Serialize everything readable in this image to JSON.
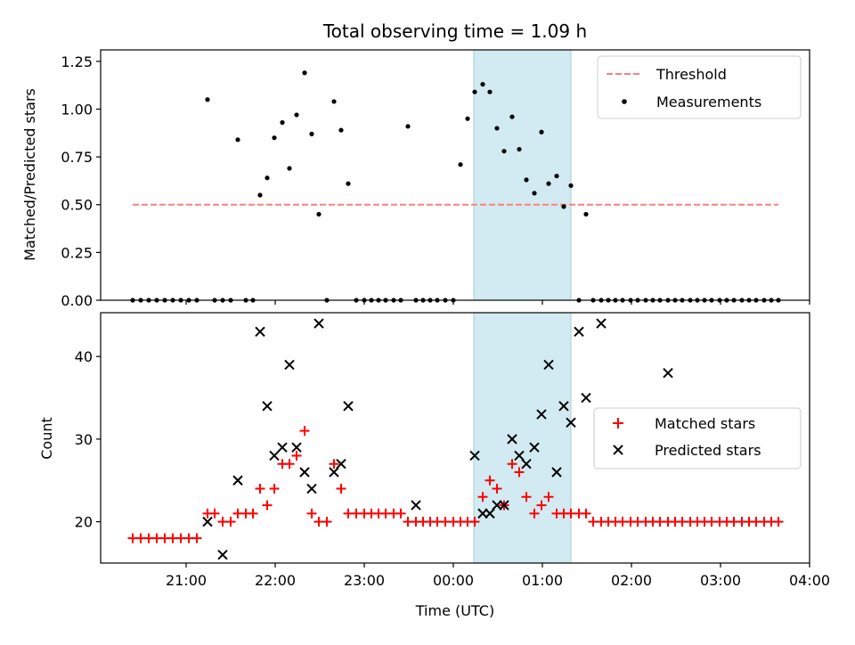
{
  "chart_data": [
    {
      "type": "scatter",
      "title": "Total observing time = 1.09 h",
      "ylabel": "Matched/Predicted stars",
      "ylim": [
        0,
        1.31
      ],
      "yticks": [
        0.0,
        0.25,
        0.5,
        0.75,
        1.0,
        1.25
      ],
      "ytick_labels": [
        "0.00",
        "0.25",
        "0.50",
        "0.75",
        "1.00",
        "1.25"
      ],
      "shaded_region": {
        "x0": 24.23,
        "x1": 25.32,
        "color": "#add8e6"
      },
      "legend": {
        "placement": "top-right",
        "entries": [
          "Threshold",
          "Measurements"
        ]
      },
      "series": [
        {
          "name": "Threshold",
          "style": "dashed-line",
          "color": "#ff7f7f",
          "x": [
            20.4,
            23.5,
            25.6,
            27.65
          ],
          "y": [
            0.5,
            0.5,
            0.5,
            0.5
          ]
        },
        {
          "name": "Measurements",
          "style": "dot",
          "color": "#000000",
          "x": [
            20.4,
            20.49,
            20.58,
            20.67,
            20.76,
            20.85,
            20.94,
            21.03,
            21.12,
            21.24,
            21.32,
            21.41,
            21.5,
            21.58,
            21.67,
            21.75,
            21.83,
            21.91,
            21.99,
            22.08,
            22.16,
            22.24,
            22.33,
            22.41,
            22.49,
            22.58,
            22.66,
            22.74,
            22.82,
            22.91,
            23.0,
            23.08,
            23.16,
            23.24,
            23.33,
            23.41,
            23.49,
            23.58,
            23.66,
            23.74,
            23.82,
            23.91,
            24.0,
            24.08,
            24.16,
            24.24,
            24.33,
            24.41,
            24.49,
            24.57,
            24.66,
            24.74,
            24.82,
            24.91,
            24.99,
            25.07,
            25.16,
            25.24,
            25.32,
            25.41,
            25.49,
            25.57,
            25.66,
            25.74,
            25.82,
            25.9,
            25.99,
            26.07,
            26.16,
            26.24,
            26.32,
            26.41,
            26.49,
            26.57,
            26.66,
            26.74,
            26.82,
            26.9,
            26.99,
            27.07,
            27.15,
            27.24,
            27.32,
            27.4,
            27.49,
            27.57,
            27.65
          ],
          "y": [
            0,
            0,
            0,
            0,
            0,
            0,
            0,
            0,
            0,
            1.05,
            0,
            0,
            0,
            0.84,
            0,
            0,
            0.55,
            0.64,
            0.85,
            0.93,
            0.69,
            0.97,
            1.19,
            0.87,
            0.45,
            0,
            1.04,
            0.89,
            0.61,
            0,
            0,
            0,
            0,
            0,
            0,
            0,
            0.91,
            0,
            0,
            0,
            0,
            0,
            0,
            0.71,
            0.95,
            1.09,
            1.13,
            1.09,
            0.9,
            0.78,
            0.96,
            0.79,
            0.63,
            0.56,
            0.88,
            0.61,
            0.65,
            0.49,
            0.6,
            0,
            0.45,
            0,
            0,
            0,
            0,
            0,
            0,
            0,
            0,
            0,
            0,
            0,
            0,
            0,
            0,
            0,
            0,
            0,
            0,
            0,
            0,
            0,
            0,
            0,
            0,
            0,
            0
          ]
        }
      ]
    },
    {
      "type": "scatter",
      "xlabel": "Time (UTC)",
      "ylabel": "Count",
      "xlim": [
        20.04,
        28.0
      ],
      "ylim": [
        15,
        45.3
      ],
      "xticks": [
        21,
        22,
        23,
        24,
        25,
        26,
        27,
        28
      ],
      "xtick_labels": [
        "21:00",
        "22:00",
        "23:00",
        "00:00",
        "01:00",
        "02:00",
        "03:00",
        "04:00"
      ],
      "yticks": [
        20,
        30,
        40
      ],
      "ytick_labels": [
        "20",
        "30",
        "40"
      ],
      "shaded_region": {
        "x0": 24.23,
        "x1": 25.32,
        "color": "#add8e6"
      },
      "legend": {
        "placement": "center-right",
        "entries": [
          "Matched stars",
          "Predicted stars"
        ]
      },
      "series": [
        {
          "name": "Matched stars",
          "marker": "plus",
          "color": "#ff0000",
          "x": [
            20.4,
            20.49,
            20.58,
            20.67,
            20.76,
            20.85,
            20.94,
            21.03,
            21.12,
            21.24,
            21.32,
            21.41,
            21.5,
            21.58,
            21.67,
            21.75,
            21.83,
            21.91,
            21.99,
            22.08,
            22.16,
            22.24,
            22.33,
            22.41,
            22.49,
            22.58,
            22.66,
            22.74,
            22.82,
            22.91,
            23.0,
            23.08,
            23.16,
            23.24,
            23.33,
            23.41,
            23.49,
            23.58,
            23.66,
            23.74,
            23.82,
            23.91,
            24.0,
            24.08,
            24.16,
            24.24,
            24.33,
            24.41,
            24.49,
            24.57,
            24.66,
            24.74,
            24.82,
            24.91,
            24.99,
            25.07,
            25.16,
            25.24,
            25.32,
            25.41,
            25.49,
            25.57,
            25.66,
            25.74,
            25.82,
            25.9,
            25.99,
            26.07,
            26.16,
            26.24,
            26.32,
            26.41,
            26.49,
            26.57,
            26.66,
            26.74,
            26.82,
            26.9,
            26.99,
            27.07,
            27.15,
            27.24,
            27.32,
            27.4,
            27.49,
            27.57,
            27.65
          ],
          "y": [
            18,
            18,
            18,
            18,
            18,
            18,
            18,
            18,
            18,
            21,
            21,
            20,
            20,
            21,
            21,
            21,
            24,
            22,
            24,
            27,
            27,
            28,
            31,
            21,
            20,
            20,
            27,
            24,
            21,
            21,
            21,
            21,
            21,
            21,
            21,
            21,
            20,
            20,
            20,
            20,
            20,
            20,
            20,
            20,
            20,
            20,
            23,
            25,
            24,
            22,
            27,
            26,
            23,
            21,
            22,
            23,
            21,
            21,
            21,
            21,
            21,
            20,
            20,
            20,
            20,
            20,
            20,
            20,
            20,
            20,
            20,
            20,
            20,
            20,
            20,
            20,
            20,
            20,
            20,
            20,
            20,
            20,
            20,
            20,
            20,
            20,
            20
          ]
        },
        {
          "name": "Predicted stars",
          "marker": "cross",
          "color": "#000000",
          "x": [
            21.24,
            21.41,
            21.58,
            21.83,
            21.91,
            21.99,
            22.08,
            22.16,
            22.24,
            22.33,
            22.41,
            22.49,
            22.66,
            22.74,
            22.82,
            23.58,
            24.24,
            24.33,
            24.41,
            24.49,
            24.57,
            24.66,
            24.74,
            24.82,
            24.91,
            24.99,
            25.07,
            25.16,
            25.24,
            25.32,
            25.41,
            25.49,
            25.66,
            26.41
          ],
          "y": [
            20,
            16,
            25,
            43,
            34,
            28,
            29,
            39,
            29,
            26,
            24,
            44,
            26,
            27,
            34,
            22,
            28,
            21,
            21,
            22,
            22,
            30,
            28,
            27,
            29,
            33,
            39,
            26,
            34,
            32,
            43,
            35,
            44,
            38
          ]
        }
      ]
    }
  ]
}
